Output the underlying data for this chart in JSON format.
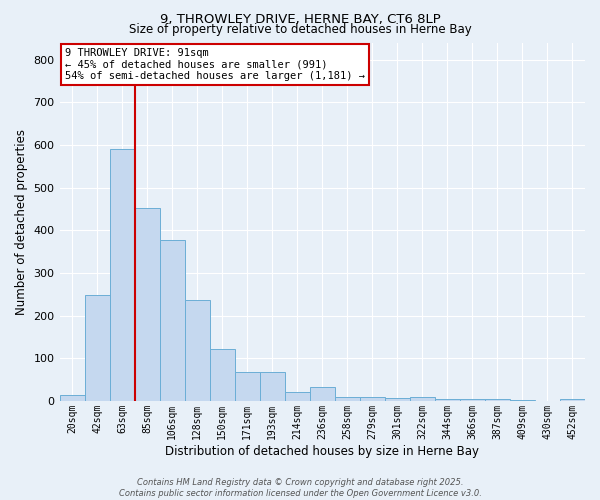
{
  "title1": "9, THROWLEY DRIVE, HERNE BAY, CT6 8LP",
  "title2": "Size of property relative to detached houses in Herne Bay",
  "xlabel": "Distribution of detached houses by size in Herne Bay",
  "ylabel": "Number of detached properties",
  "categories": [
    "20sqm",
    "42sqm",
    "63sqm",
    "85sqm",
    "106sqm",
    "128sqm",
    "150sqm",
    "171sqm",
    "193sqm",
    "214sqm",
    "236sqm",
    "258sqm",
    "279sqm",
    "301sqm",
    "322sqm",
    "344sqm",
    "366sqm",
    "387sqm",
    "409sqm",
    "430sqm",
    "452sqm"
  ],
  "values": [
    15,
    248,
    590,
    453,
    378,
    236,
    122,
    68,
    68,
    20,
    32,
    10,
    10,
    8,
    10,
    4,
    4,
    4,
    2,
    0,
    5
  ],
  "bar_color": "#c5d8ef",
  "bar_edge_color": "#6baed6",
  "bg_color": "#e8f0f8",
  "grid_color": "#ffffff",
  "vline_x_index": 3,
  "vline_color": "#cc0000",
  "annotation_line1": "9 THROWLEY DRIVE: 91sqm",
  "annotation_line2": "← 45% of detached houses are smaller (991)",
  "annotation_line3": "54% of semi-detached houses are larger (1,181) →",
  "annotation_box_color": "#ffffff",
  "annotation_box_edge": "#cc0000",
  "footer1": "Contains HM Land Registry data © Crown copyright and database right 2025.",
  "footer2": "Contains public sector information licensed under the Open Government Licence v3.0.",
  "ylim": [
    0,
    840
  ],
  "yticks": [
    0,
    100,
    200,
    300,
    400,
    500,
    600,
    700,
    800
  ]
}
